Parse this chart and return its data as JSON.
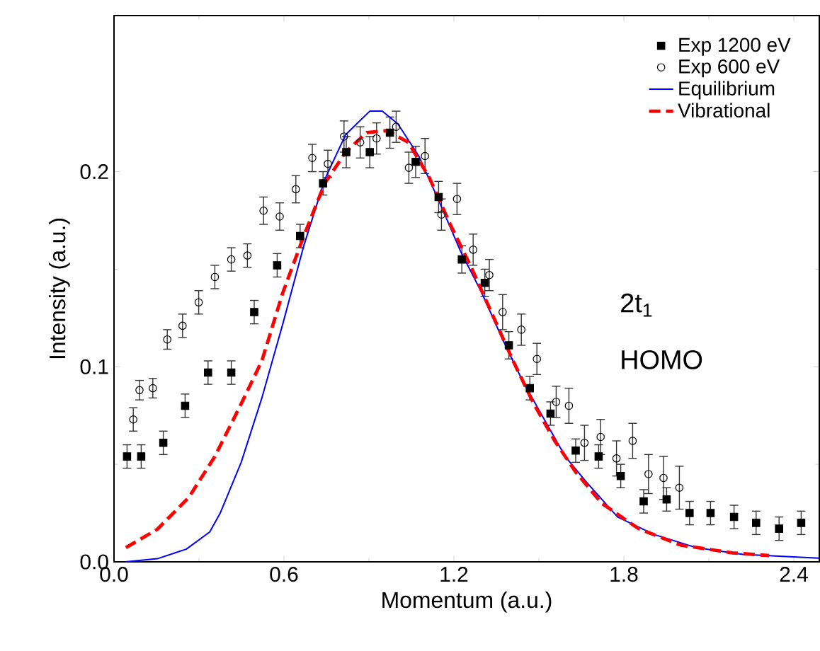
{
  "chart_data": {
    "type": "scatter",
    "xlabel": "Momentum (a.u.)",
    "ylabel": "Intensity (a.u.)",
    "xlim": [
      0,
      2.49
    ],
    "ylim": [
      0,
      0.28
    ],
    "xticks": [
      {
        "value": 0,
        "label": "0.0"
      },
      0.6,
      1.2,
      1.8,
      2.4
    ],
    "yticks": [
      {
        "value": 0,
        "label": "0.0"
      },
      0.1,
      0.2
    ],
    "legend": "top right",
    "grid": false,
    "annotations": [
      "2t$_{1}$",
      "HOMO"
    ],
    "series": [
      {
        "name": "Exp 1200 eV",
        "type": "scatter",
        "marker": "square",
        "color": "#000000",
        "x": [
          0.046,
          0.096,
          0.174,
          0.251,
          0.332,
          0.414,
          0.495,
          0.576,
          0.657,
          0.738,
          0.82,
          0.903,
          0.974,
          1.065,
          1.146,
          1.228,
          1.309,
          1.394,
          1.468,
          1.541,
          1.63,
          1.711,
          1.789,
          1.87,
          1.951,
          2.032,
          2.106,
          2.189,
          2.267,
          2.348,
          2.426
        ],
        "values": [
          0.054,
          0.054,
          0.061,
          0.08,
          0.097,
          0.097,
          0.128,
          0.152,
          0.167,
          0.194,
          0.21,
          0.21,
          0.22,
          0.205,
          0.187,
          0.155,
          0.143,
          0.111,
          0.089,
          0.076,
          0.057,
          0.054,
          0.044,
          0.031,
          0.032,
          0.025,
          0.025,
          0.023,
          0.02,
          0.017,
          0.02
        ],
        "errors": [
          0.006,
          0.006,
          0.006,
          0.006,
          0.006,
          0.006,
          0.006,
          0.006,
          0.006,
          0.006,
          0.008,
          0.008,
          0.008,
          0.008,
          0.008,
          0.007,
          0.007,
          0.007,
          0.006,
          0.006,
          0.006,
          0.006,
          0.006,
          0.006,
          0.006,
          0.006,
          0.006,
          0.006,
          0.006,
          0.006,
          0.006
        ]
      },
      {
        "name": "Exp 600 eV",
        "type": "scatter",
        "marker": "circle",
        "color": "#000000",
        "x": [
          0.068,
          0.09,
          0.137,
          0.188,
          0.242,
          0.299,
          0.356,
          0.414,
          0.471,
          0.528,
          0.585,
          0.642,
          0.7,
          0.755,
          0.812,
          0.869,
          0.927,
          0.996,
          1.041,
          1.098,
          1.156,
          1.211,
          1.268,
          1.325,
          1.372,
          1.438,
          1.493,
          1.561,
          1.606,
          1.661,
          1.718,
          1.774,
          1.831,
          1.887,
          1.94,
          1.996
        ],
        "values": [
          0.073,
          0.088,
          0.089,
          0.114,
          0.121,
          0.133,
          0.146,
          0.155,
          0.157,
          0.18,
          0.177,
          0.191,
          0.207,
          0.204,
          0.218,
          0.215,
          0.217,
          0.223,
          0.202,
          0.208,
          0.178,
          0.186,
          0.16,
          0.147,
          0.128,
          0.119,
          0.104,
          0.082,
          0.08,
          0.061,
          0.064,
          0.053,
          0.062,
          0.045,
          0.043,
          0.038
        ],
        "errors": [
          0.006,
          0.005,
          0.005,
          0.005,
          0.006,
          0.006,
          0.006,
          0.006,
          0.006,
          0.007,
          0.007,
          0.007,
          0.007,
          0.007,
          0.008,
          0.008,
          0.008,
          0.008,
          0.008,
          0.009,
          0.008,
          0.008,
          0.008,
          0.008,
          0.009,
          0.008,
          0.008,
          0.008,
          0.009,
          0.009,
          0.009,
          0.009,
          0.009,
          0.01,
          0.011,
          0.011
        ]
      },
      {
        "name": "Equilibrium",
        "type": "line",
        "line_style": "solid",
        "color": "#0000ff",
        "x": [
          0.04,
          0.153,
          0.255,
          0.338,
          0.375,
          0.449,
          0.522,
          0.596,
          0.67,
          0.744,
          0.818,
          0.903,
          0.947,
          1.002,
          1.076,
          1.15,
          1.224,
          1.298,
          1.372,
          1.445,
          1.519,
          1.593,
          1.667,
          1.778,
          1.907,
          2.055,
          2.221,
          2.488
        ],
        "values": [
          0,
          0.0016,
          0.0065,
          0.0153,
          0.025,
          0.051,
          0.084,
          0.122,
          0.162,
          0.196,
          0.219,
          0.231,
          0.231,
          0.2245,
          0.208,
          0.184,
          0.159,
          0.138,
          0.114,
          0.092,
          0.073,
          0.054,
          0.041,
          0.023,
          0.014,
          0.0073,
          0.0038,
          0.0019
        ]
      },
      {
        "name": "Vibrational",
        "type": "line",
        "line_style": "dashed",
        "color": "#ff0000",
        "x": [
          0.042,
          0.153,
          0.264,
          0.356,
          0.449,
          0.522,
          0.596,
          0.67,
          0.744,
          0.818,
          0.892,
          0.965,
          1.039,
          1.113,
          1.187,
          1.261,
          1.335,
          1.409,
          1.482,
          1.556,
          1.63,
          1.722,
          1.852,
          2.0,
          2.184,
          2.313
        ],
        "values": [
          0.0073,
          0.0167,
          0.033,
          0.054,
          0.081,
          0.103,
          0.138,
          0.167,
          0.194,
          0.21,
          0.22,
          0.221,
          0.215,
          0.197,
          0.173,
          0.151,
          0.127,
          0.103,
          0.081,
          0.062,
          0.046,
          0.03,
          0.017,
          0.0086,
          0.0046,
          0.0032
        ]
      }
    ]
  }
}
